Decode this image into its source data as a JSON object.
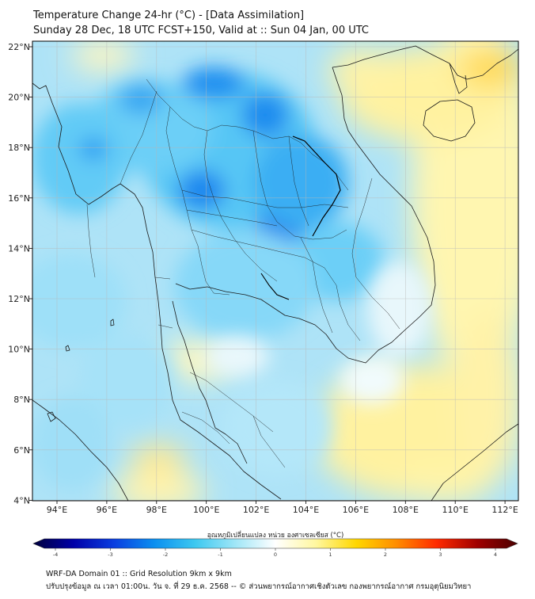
{
  "header": {
    "title_line1": "Temperature Change 24-hr (°C) - [Data Assimilation]",
    "title_line2": "Sunday 28 Dec, 18 UTC FCST+150, Valid at :: Sun 04 Jan, 00 UTC"
  },
  "map": {
    "lon_labels": [
      "94°E",
      "96°E",
      "98°E",
      "100°E",
      "102°E",
      "104°E",
      "106°E",
      "108°E",
      "110°E",
      "112°E"
    ],
    "lat_labels": [
      "22°N",
      "20°N",
      "18°N",
      "16°N",
      "14°N",
      "12°N",
      "10°N",
      "8°N",
      "6°N",
      "4°N"
    ],
    "colors": {
      "base": "#aee3f7",
      "cold": "#0a8ff0",
      "warm": "#fff3a6"
    }
  },
  "colorbar": {
    "label": "อุณหภูมิเปลี่ยนแปลง หน่วย องศาเซลเซียส (°C)",
    "ticks": [
      "-4",
      "-3",
      "-2",
      "-1",
      "0",
      "1",
      "2",
      "3",
      "4"
    ],
    "min": -4,
    "max": 4,
    "colors": [
      "#00003c",
      "#0000a8",
      "#0a3ee0",
      "#0a8ff0",
      "#3cc8f0",
      "#9fe6f7",
      "#ffffff",
      "#fff7a0",
      "#ffd700",
      "#ff8c00",
      "#ff2a00",
      "#a00000",
      "#4a0000"
    ]
  },
  "footer": {
    "line1": "WRF-DA Domain 01 :: Grid Resolution 9km x 9km",
    "line2": "ปรับปรุงข้อมูล ณ เวลา 01:00น. วัน จ. ที่ 29 ธ.ค. 2568 -- © ส่วนพยากรณ์อากาศเชิงตัวเลข กองพยากรณ์อากาศ กรมอุตุนิยมวิทยา"
  }
}
